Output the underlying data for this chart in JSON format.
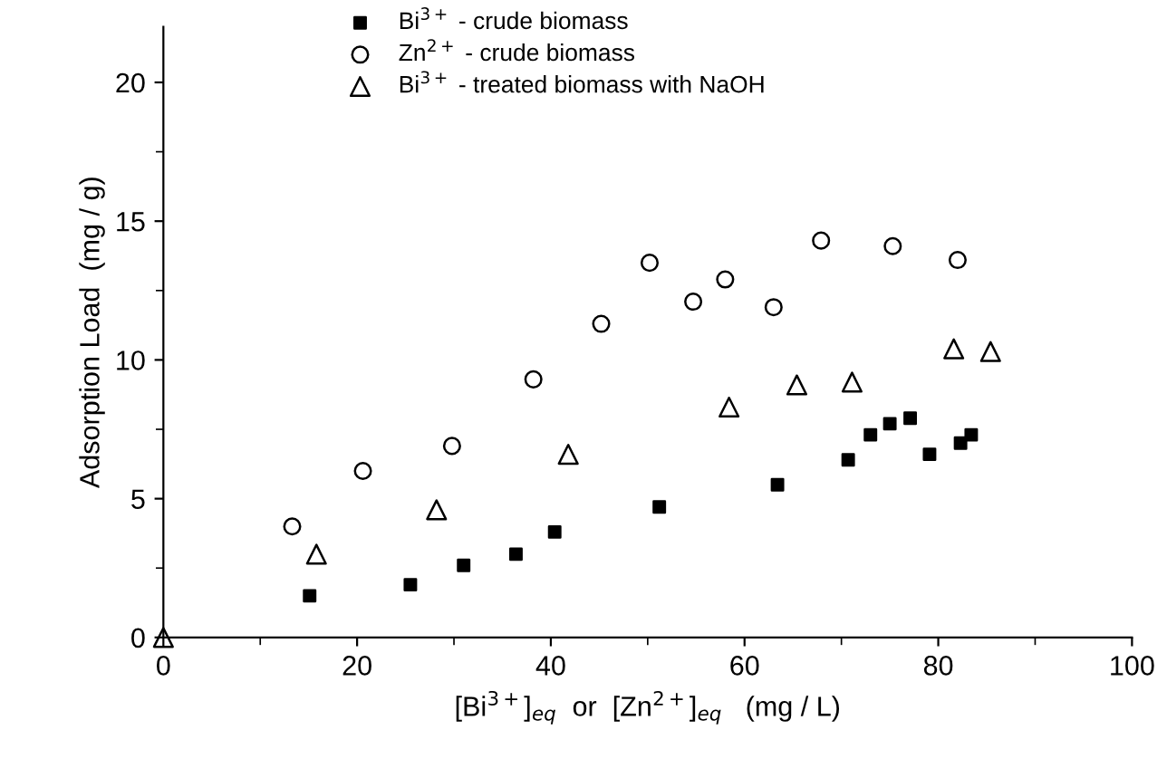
{
  "chart_data": {
    "type": "scatter",
    "xlabel": "[Bi$^{3+}$]$_{eq}$  or  [Zn$^{2+}$]$_{eq}$   (mg / L)",
    "ylabel": "Adsorption Load  (mg / g)",
    "xlim": [
      0,
      100
    ],
    "ylim": [
      0,
      22
    ],
    "xticks": [
      0,
      20,
      40,
      60,
      80,
      100
    ],
    "yticks": [
      0,
      5,
      10,
      15,
      20
    ],
    "grid": false,
    "legend": "top",
    "series": [
      {
        "name": "Bi$^{3+}$ - crude biomass",
        "color": "#000000",
        "marker": "square",
        "x": [
          15.1,
          25.5,
          31.0,
          36.4,
          40.4,
          51.2,
          63.4,
          70.7,
          73.0,
          75.0,
          77.1,
          79.1,
          82.3,
          83.4
        ],
        "values": [
          1.5,
          1.9,
          2.6,
          3.0,
          3.8,
          4.7,
          5.5,
          6.4,
          7.3,
          7.7,
          7.9,
          6.6,
          7.0,
          7.3
        ]
      },
      {
        "name": "Zn$^{2+}$ - crude biomass",
        "color": "#000000",
        "marker": "circle",
        "x": [
          13.3,
          20.6,
          29.8,
          38.2,
          45.2,
          50.2,
          54.7,
          58.0,
          63.0,
          67.9,
          75.3,
          82.0
        ],
        "values": [
          4.0,
          6.0,
          6.9,
          9.3,
          11.3,
          13.5,
          12.1,
          12.9,
          11.9,
          14.3,
          14.1,
          13.6
        ]
      },
      {
        "name": "Bi$^{3+}$ - treated biomass with NaOH",
        "color": "#000000",
        "marker": "triangle",
        "x": [
          0,
          15.8,
          28.2,
          41.8,
          58.4,
          65.4,
          71.1,
          81.6,
          85.4
        ],
        "values": [
          0,
          3.0,
          4.6,
          6.6,
          8.3,
          9.1,
          9.2,
          10.4,
          10.3
        ]
      }
    ]
  }
}
